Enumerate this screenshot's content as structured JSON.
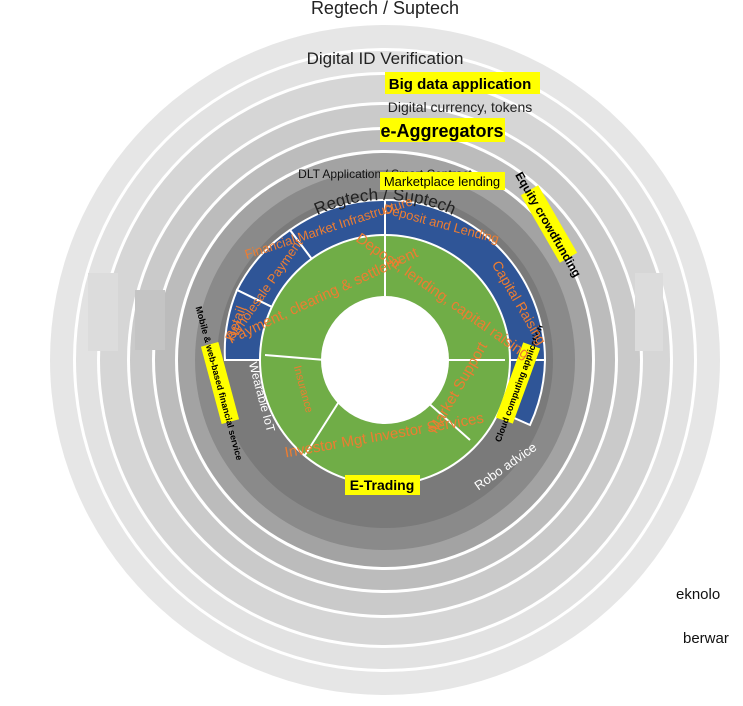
{
  "rings": {
    "regtech": "Regtech / Suptech",
    "digital_id": "Digital ID Verification",
    "big_data": "Big data application",
    "digital_currency": "Digital currency, tokens",
    "e_aggregators": "e-Aggregators",
    "dlt": "DLT Application / Smart Contract",
    "marketplace": "Marketplace lending",
    "equity": "Equity crowdfunding",
    "mobile": "Mobile & web-based financial service",
    "cloud": "Cloud computing application",
    "wearable": "Wearable IoT",
    "robo": "Robo advice",
    "etrading": "E-Trading"
  },
  "blue_sectors": {
    "retail": "Retail",
    "wholesale": "Wholesale Payment",
    "fmi": "Financial Market Infrastructure",
    "deposit": "Deposit and Lending",
    "capital": "Capital Raising"
  },
  "green_sectors": {
    "payment": "Payment, clearing & settlement",
    "deposit": "Deposit, lending, capital raising",
    "insurance": "Insurance",
    "investor": "Investor Mgt Investor Services",
    "market": "Market Support"
  },
  "side_text": {
    "line1": "eknolo",
    "line2": "berwar"
  },
  "colors": {
    "outer_ring": "#e6e6e6",
    "ring_mid": "#d0d0d0",
    "ring_dark": "#b4b4b4",
    "dlt_ring": "#9c9c9c",
    "dark_ring": "#787878",
    "blue": "#2f5597",
    "green": "#70ad47",
    "orange_text": "#ed7d31",
    "highlight": "#ffff00"
  }
}
